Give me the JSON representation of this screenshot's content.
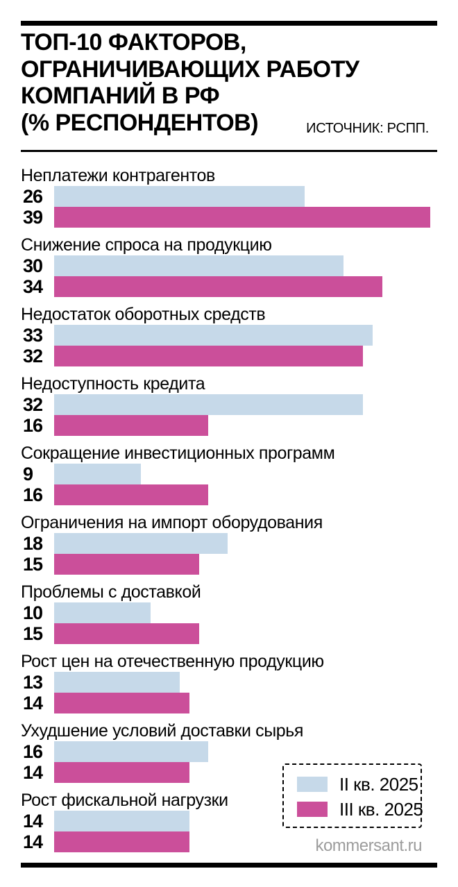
{
  "header": {
    "title_lines": [
      "ТОП-10 ФАКТОРОВ,",
      "ОГРАНИЧИВАЮЩИХ РАБОТУ",
      "КОМПАНИЙ В РФ",
      "(% РЕСПОНДЕНТОВ)"
    ],
    "source": "ИСТОЧНИК: РСПП."
  },
  "chart_data": {
    "type": "bar",
    "orientation": "horizontal",
    "title": "ТОП-10 ФАКТОРОВ, ОГРАНИЧИВАЮЩИХ РАБОТУ КОМПАНИЙ В РФ (% РЕСПОНДЕНТОВ)",
    "source": "РСПП",
    "categories": [
      "Неплатежи контрагентов",
      "Снижение спроса на продукцию",
      "Недостаток оборотных средств",
      "Недоступность кредита",
      "Сокращение инвестиционных программ",
      "Ограничения на импорт оборудования",
      "Проблемы с доставкой",
      "Рост цен на отечественную продукцию",
      "Ухудшение условий доставки сырья",
      "Рост фискальной нагрузки"
    ],
    "series": [
      {
        "name": "II кв. 2025",
        "color": "#c6d9e9",
        "values": [
          26,
          30,
          33,
          32,
          9,
          18,
          10,
          13,
          16,
          14
        ]
      },
      {
        "name": "III кв. 2025",
        "color": "#cb4f9a",
        "values": [
          39,
          34,
          32,
          16,
          16,
          15,
          15,
          14,
          14,
          14
        ]
      }
    ],
    "xlim": [
      0,
      39
    ],
    "value_labels": "left-of-bar",
    "legend_position": "bottom-right",
    "grid": false
  },
  "footer": {
    "watermark": "kommersant.ru"
  },
  "colors": {
    "rule_black": "#000000",
    "watermark_gray": "#9c9c9c"
  }
}
